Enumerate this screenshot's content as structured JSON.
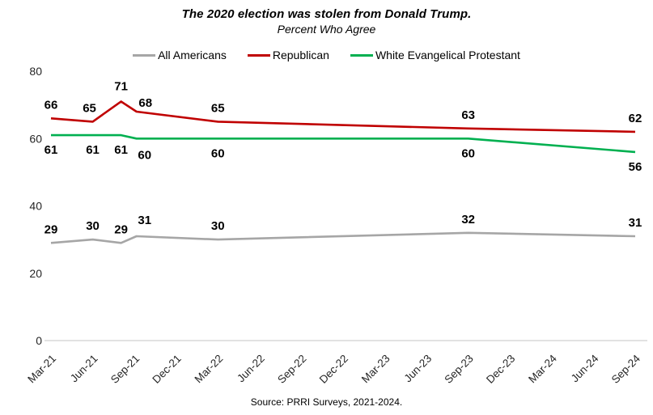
{
  "header": {
    "title": "The 2020 election was stolen from Donald Trump.",
    "subtitle": "Percent Who Agree"
  },
  "source_note": "Source: PRRI Surveys, 2021-2024.",
  "chart_data": {
    "type": "line",
    "title": "The 2020 election was stolen from Donald Trump.",
    "subtitle": "Percent Who Agree",
    "categories": [
      "Mar-21",
      "Jun-21",
      "Sep-21",
      "Dec-21",
      "Mar-22",
      "Jun-22",
      "Sep-22",
      "Dec-22",
      "Mar-23",
      "Jun-23",
      "Sep-23",
      "Dec-23",
      "Mar-24",
      "Jun-24",
      "Sep-24"
    ],
    "ylim": [
      0,
      80
    ],
    "y_ticks": [
      0,
      20,
      40,
      60,
      80
    ],
    "grid": false,
    "legend_position": "top",
    "axis_color": "#d9d9d9",
    "tick_text_color": "#262626",
    "data_label_color": "#000000",
    "series": [
      {
        "name": "All Americans",
        "color": "#a6a6a6",
        "label_side": "above",
        "points": [
          {
            "xi": 0,
            "v": 29
          },
          {
            "xi": 1,
            "v": 30
          },
          {
            "xi": 1.68,
            "v": 29
          },
          {
            "xi": 2.05,
            "v": 31,
            "ldx": 10,
            "ldy": -20
          },
          {
            "xi": 4,
            "v": 30
          },
          {
            "xi": 10,
            "v": 32
          },
          {
            "xi": 14,
            "v": 31
          }
        ]
      },
      {
        "name": "Republican",
        "color": "#c00000",
        "label_side": "above",
        "points": [
          {
            "xi": 0,
            "v": 66
          },
          {
            "xi": 1,
            "v": 65,
            "ldx": -4
          },
          {
            "xi": 1.68,
            "v": 71,
            "ldy": -19
          },
          {
            "xi": 2.05,
            "v": 68,
            "ldx": 11,
            "ldy": -11
          },
          {
            "xi": 4,
            "v": 65
          },
          {
            "xi": 10,
            "v": 63
          },
          {
            "xi": 14,
            "v": 62
          }
        ]
      },
      {
        "name": "White Evangelical Protestant",
        "color": "#00b050",
        "label_side": "below",
        "points": [
          {
            "xi": 0,
            "v": 61
          },
          {
            "xi": 1,
            "v": 61
          },
          {
            "xi": 1.68,
            "v": 61
          },
          {
            "xi": 2.05,
            "v": 60,
            "ldx": 10,
            "ldy": 20
          },
          {
            "xi": 4,
            "v": 60
          },
          {
            "xi": 10,
            "v": 60
          },
          {
            "xi": 14,
            "v": 56
          }
        ]
      }
    ]
  }
}
